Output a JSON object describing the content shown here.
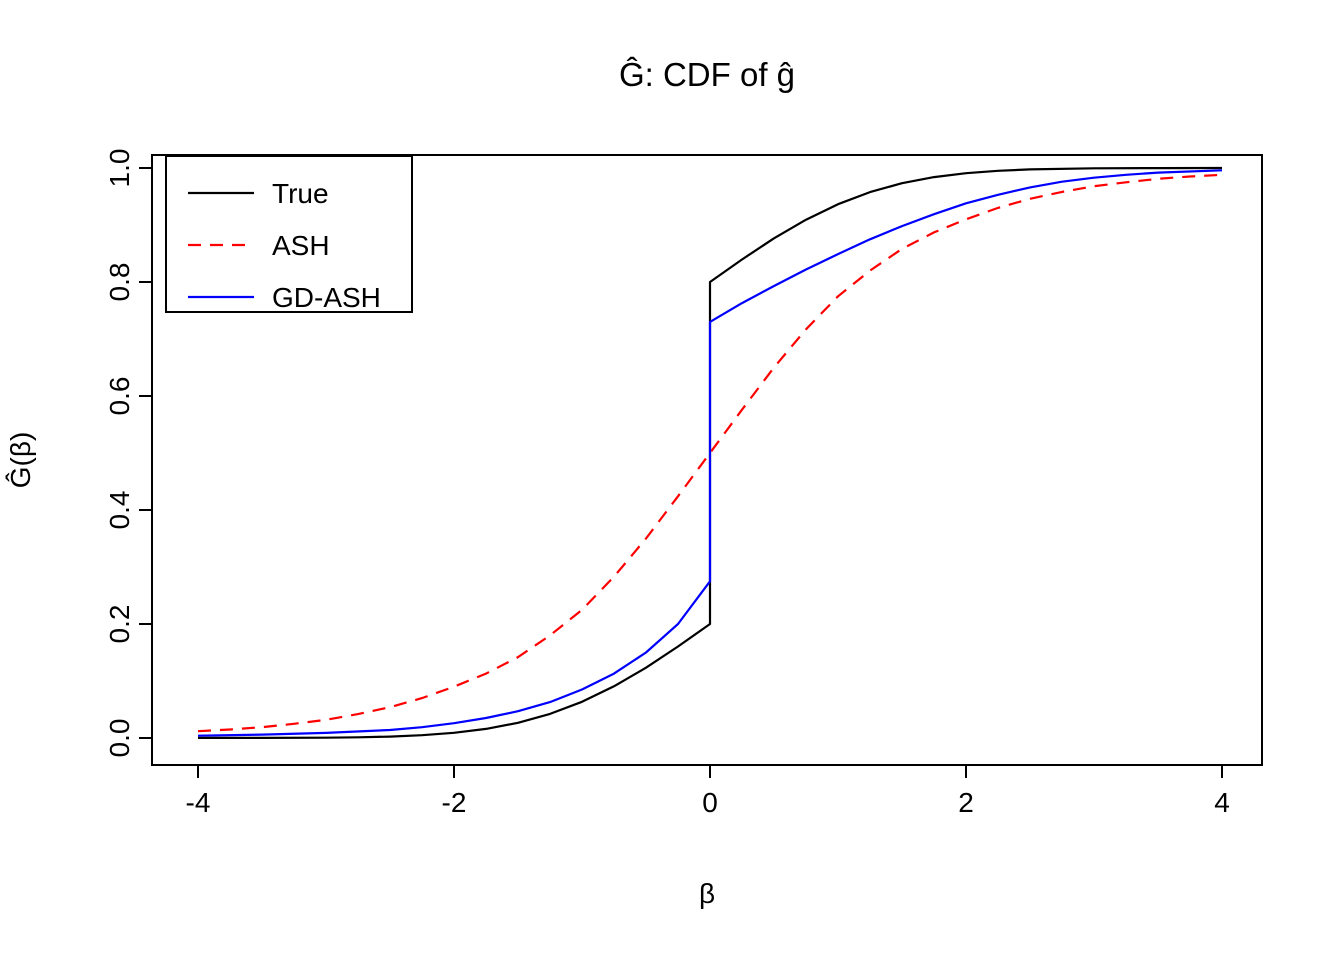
{
  "chart_data": {
    "type": "line",
    "title": "Ĝ: CDF of ĝ",
    "xlabel": "β",
    "ylabel": "Ĝ(β)",
    "xlim": [
      -4,
      4
    ],
    "ylim": [
      0,
      1
    ],
    "x_ticks": [
      -4,
      -2,
      0,
      2,
      4
    ],
    "x_tick_labels": [
      "-4",
      "-2",
      "0",
      "2",
      "4"
    ],
    "y_ticks": [
      0,
      0.2,
      0.4,
      0.6,
      0.8,
      1.0
    ],
    "y_tick_labels": [
      "0.0",
      "0.2",
      "0.4",
      "0.6",
      "0.8",
      "1.0"
    ],
    "grid": false,
    "legend_position": "top-left",
    "background": "#ffffff",
    "axis_color": "#000000",
    "series": [
      {
        "name": "True",
        "color": "#000000",
        "style": "solid",
        "points": [
          [
            -4,
            0.0001
          ],
          [
            -3.5,
            0.0002
          ],
          [
            -3,
            0.0006
          ],
          [
            -2.75,
            0.0012
          ],
          [
            -2.5,
            0.0025
          ],
          [
            -2.25,
            0.0049
          ],
          [
            -2,
            0.0091
          ],
          [
            -1.75,
            0.016
          ],
          [
            -1.5,
            0.0267
          ],
          [
            -1.25,
            0.0423
          ],
          [
            -1,
            0.0635
          ],
          [
            -0.75,
            0.0907
          ],
          [
            -0.5,
            0.1234
          ],
          [
            -0.25,
            0.1605
          ],
          [
            0,
            0.2
          ],
          [
            0,
            0.8
          ],
          [
            0.25,
            0.8395
          ],
          [
            0.5,
            0.8766
          ],
          [
            0.75,
            0.9093
          ],
          [
            1,
            0.9365
          ],
          [
            1.25,
            0.9577
          ],
          [
            1.5,
            0.9733
          ],
          [
            1.75,
            0.984
          ],
          [
            2,
            0.9909
          ],
          [
            2.25,
            0.9951
          ],
          [
            2.5,
            0.9975
          ],
          [
            3,
            0.9995
          ],
          [
            3.5,
            0.9999
          ],
          [
            4,
            1.0
          ]
        ]
      },
      {
        "name": "ASH",
        "color": "#FF0000",
        "style": "dashed",
        "points": [
          [
            -4,
            0.012
          ],
          [
            -3.75,
            0.015
          ],
          [
            -3.5,
            0.019
          ],
          [
            -3.25,
            0.025
          ],
          [
            -3,
            0.032
          ],
          [
            -2.75,
            0.042
          ],
          [
            -2.5,
            0.054
          ],
          [
            -2.25,
            0.07
          ],
          [
            -2,
            0.09
          ],
          [
            -1.75,
            0.113
          ],
          [
            -1.5,
            0.142
          ],
          [
            -1.25,
            0.18
          ],
          [
            -1,
            0.225
          ],
          [
            -0.75,
            0.283
          ],
          [
            -0.5,
            0.35
          ],
          [
            -0.25,
            0.424
          ],
          [
            0,
            0.5
          ],
          [
            0.25,
            0.576
          ],
          [
            0.5,
            0.65
          ],
          [
            0.75,
            0.717
          ],
          [
            1,
            0.775
          ],
          [
            1.25,
            0.82
          ],
          [
            1.5,
            0.858
          ],
          [
            1.75,
            0.887
          ],
          [
            2,
            0.91
          ],
          [
            2.25,
            0.93
          ],
          [
            2.5,
            0.946
          ],
          [
            2.75,
            0.958
          ],
          [
            3,
            0.968
          ],
          [
            3.25,
            0.975
          ],
          [
            3.5,
            0.981
          ],
          [
            3.75,
            0.985
          ],
          [
            4,
            0.988
          ]
        ]
      },
      {
        "name": "GD-ASH",
        "color": "#0000FF",
        "style": "solid",
        "points": [
          [
            -4,
            0.004
          ],
          [
            -3.5,
            0.006
          ],
          [
            -3,
            0.009
          ],
          [
            -2.5,
            0.014
          ],
          [
            -2.25,
            0.019
          ],
          [
            -2,
            0.026
          ],
          [
            -1.75,
            0.035
          ],
          [
            -1.5,
            0.047
          ],
          [
            -1.25,
            0.063
          ],
          [
            -1,
            0.085
          ],
          [
            -0.75,
            0.113
          ],
          [
            -0.5,
            0.15
          ],
          [
            -0.25,
            0.2
          ],
          [
            0,
            0.275
          ],
          [
            0,
            0.73
          ],
          [
            0.25,
            0.763
          ],
          [
            0.5,
            0.793
          ],
          [
            0.75,
            0.822
          ],
          [
            1,
            0.849
          ],
          [
            1.25,
            0.875
          ],
          [
            1.5,
            0.898
          ],
          [
            1.75,
            0.919
          ],
          [
            2,
            0.938
          ],
          [
            2.25,
            0.953
          ],
          [
            2.5,
            0.966
          ],
          [
            2.75,
            0.976
          ],
          [
            3,
            0.983
          ],
          [
            3.25,
            0.988
          ],
          [
            3.5,
            0.992
          ],
          [
            4,
            0.996
          ]
        ]
      }
    ]
  }
}
